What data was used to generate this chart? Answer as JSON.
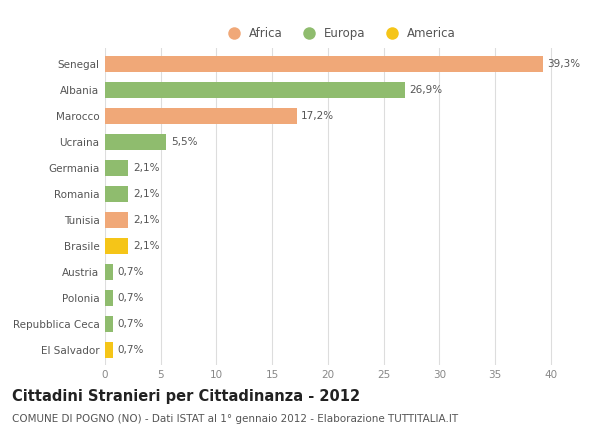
{
  "countries": [
    "El Salvador",
    "Repubblica Ceca",
    "Polonia",
    "Austria",
    "Brasile",
    "Tunisia",
    "Romania",
    "Germania",
    "Ucraina",
    "Marocco",
    "Albania",
    "Senegal"
  ],
  "values": [
    0.7,
    0.7,
    0.7,
    0.7,
    2.1,
    2.1,
    2.1,
    2.1,
    5.5,
    17.2,
    26.9,
    39.3
  ],
  "labels": [
    "0,7%",
    "0,7%",
    "0,7%",
    "0,7%",
    "2,1%",
    "2,1%",
    "2,1%",
    "2,1%",
    "5,5%",
    "17,2%",
    "26,9%",
    "39,3%"
  ],
  "colors": [
    "#f5c518",
    "#8fbc6e",
    "#8fbc6e",
    "#8fbc6e",
    "#f5c518",
    "#f0a878",
    "#8fbc6e",
    "#8fbc6e",
    "#8fbc6e",
    "#f0a878",
    "#8fbc6e",
    "#f0a878"
  ],
  "legend_labels": [
    "Africa",
    "Europa",
    "America"
  ],
  "legend_colors": [
    "#f0a878",
    "#8fbc6e",
    "#f5c518"
  ],
  "title": "Cittadini Stranieri per Cittadinanza - 2012",
  "subtitle": "COMUNE DI POGNO (NO) - Dati ISTAT al 1° gennaio 2012 - Elaborazione TUTTITALIA.IT",
  "xlim": [
    0,
    42
  ],
  "xticks": [
    0,
    5,
    10,
    15,
    20,
    25,
    30,
    35,
    40
  ],
  "bg_color": "#ffffff",
  "grid_color": "#dddddd",
  "title_fontsize": 10.5,
  "subtitle_fontsize": 7.5,
  "label_fontsize": 7.5,
  "tick_fontsize": 7.5,
  "legend_fontsize": 8.5
}
